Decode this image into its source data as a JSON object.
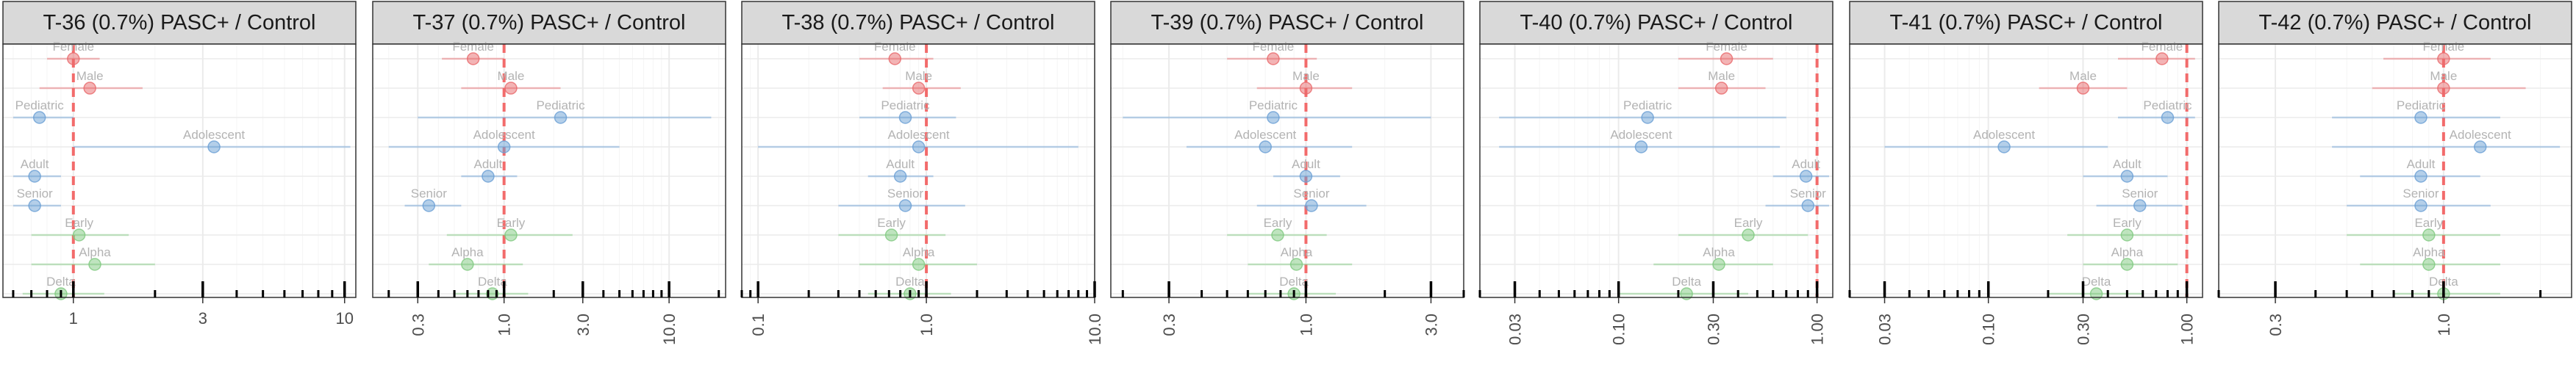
{
  "colors": {
    "sex": "#e8696b",
    "age": "#6a9fd4",
    "variant": "#7fc97f",
    "reference_line": "#f26b6b",
    "strip_fill": "#d9d9d9",
    "grid_major": "#ebebeb",
    "grid_minor": "#f5f5f5"
  },
  "chart_data": [
    {
      "type": "scatter",
      "title": "T-36 (0.7%) PASC+ / Control",
      "scale": "log10",
      "xlim": [
        0.55,
        11
      ],
      "ticks": [
        1,
        3,
        10
      ],
      "tick_labels": [
        "1",
        "3",
        "10"
      ],
      "reference_line": 1,
      "points": [
        {
          "label": "Female",
          "group": "sex",
          "x": 1.0,
          "lo": 0.8,
          "hi": 1.25
        },
        {
          "label": "Male",
          "group": "sex",
          "x": 1.15,
          "lo": 0.75,
          "hi": 1.8
        },
        {
          "label": "Pediatric",
          "group": "age",
          "x": 0.75,
          "lo": 0.6,
          "hi": 1.0
        },
        {
          "label": "Adolescent",
          "group": "age",
          "x": 3.3,
          "lo": 1.0,
          "hi": 10.5
        },
        {
          "label": "Adult",
          "group": "age",
          "x": 0.72,
          "lo": 0.6,
          "hi": 0.9
        },
        {
          "label": "Senior",
          "group": "age",
          "x": 0.72,
          "lo": 0.6,
          "hi": 0.9
        },
        {
          "label": "Early",
          "group": "variant",
          "x": 1.05,
          "lo": 0.7,
          "hi": 1.6
        },
        {
          "label": "Alpha",
          "group": "variant",
          "x": 1.2,
          "lo": 0.7,
          "hi": 2.0
        },
        {
          "label": "Delta",
          "group": "variant",
          "x": 0.9,
          "lo": 0.65,
          "hi": 1.3
        }
      ]
    },
    {
      "type": "scatter",
      "title": "T-37 (0.7%) PASC+ / Control",
      "scale": "log10",
      "xlim": [
        0.16,
        22
      ],
      "ticks": [
        0.3,
        1,
        3,
        10
      ],
      "tick_labels": [
        "0.3",
        "1.0",
        "3.0",
        "10.0"
      ],
      "reference_line": 1,
      "points": [
        {
          "label": "Female",
          "group": "sex",
          "x": 0.65,
          "lo": 0.42,
          "hi": 1.0
        },
        {
          "label": "Male",
          "group": "sex",
          "x": 1.1,
          "lo": 0.55,
          "hi": 2.2
        },
        {
          "label": "Pediatric",
          "group": "age",
          "x": 2.2,
          "lo": 0.3,
          "hi": 18
        },
        {
          "label": "Adolescent",
          "group": "age",
          "x": 1.0,
          "lo": 0.2,
          "hi": 5.0
        },
        {
          "label": "Adult",
          "group": "age",
          "x": 0.8,
          "lo": 0.55,
          "hi": 1.2
        },
        {
          "label": "Senior",
          "group": "age",
          "x": 0.35,
          "lo": 0.25,
          "hi": 0.55
        },
        {
          "label": "Early",
          "group": "variant",
          "x": 1.1,
          "lo": 0.45,
          "hi": 2.6
        },
        {
          "label": "Alpha",
          "group": "variant",
          "x": 0.6,
          "lo": 0.35,
          "hi": 1.3
        },
        {
          "label": "Delta",
          "group": "variant",
          "x": 0.85,
          "lo": 0.5,
          "hi": 1.4
        }
      ]
    },
    {
      "type": "scatter",
      "title": "T-38 (0.7%) PASC+ / Control",
      "scale": "log10",
      "xlim": [
        0.08,
        10
      ],
      "ticks": [
        0.1,
        1,
        10
      ],
      "tick_labels": [
        "0.1",
        "1.0",
        "10.0"
      ],
      "reference_line": 1,
      "points": [
        {
          "label": "Female",
          "group": "sex",
          "x": 0.65,
          "lo": 0.4,
          "hi": 1.1
        },
        {
          "label": "Male",
          "group": "sex",
          "x": 0.9,
          "lo": 0.55,
          "hi": 1.6
        },
        {
          "label": "Pediatric",
          "group": "age",
          "x": 0.75,
          "lo": 0.4,
          "hi": 1.5
        },
        {
          "label": "Adolescent",
          "group": "age",
          "x": 0.9,
          "lo": 0.1,
          "hi": 8.0
        },
        {
          "label": "Adult",
          "group": "age",
          "x": 0.7,
          "lo": 0.45,
          "hi": 1.1
        },
        {
          "label": "Senior",
          "group": "age",
          "x": 0.75,
          "lo": 0.3,
          "hi": 1.7
        },
        {
          "label": "Early",
          "group": "variant",
          "x": 0.62,
          "lo": 0.3,
          "hi": 1.3
        },
        {
          "label": "Alpha",
          "group": "variant",
          "x": 0.9,
          "lo": 0.4,
          "hi": 2.0
        },
        {
          "label": "Delta",
          "group": "variant",
          "x": 0.8,
          "lo": 0.45,
          "hi": 1.4
        }
      ]
    },
    {
      "type": "scatter",
      "title": "T-39 (0.7%) PASC+ / Control",
      "scale": "log10",
      "xlim": [
        0.18,
        4.0
      ],
      "ticks": [
        0.3,
        1,
        3
      ],
      "tick_labels": [
        "0.3",
        "1.0",
        "3.0"
      ],
      "reference_line": 1,
      "points": [
        {
          "label": "Female",
          "group": "sex",
          "x": 0.75,
          "lo": 0.5,
          "hi": 1.1
        },
        {
          "label": "Male",
          "group": "sex",
          "x": 1.0,
          "lo": 0.65,
          "hi": 1.5
        },
        {
          "label": "Pediatric",
          "group": "age",
          "x": 0.75,
          "lo": 0.2,
          "hi": 3.0
        },
        {
          "label": "Adolescent",
          "group": "age",
          "x": 0.7,
          "lo": 0.35,
          "hi": 1.5
        },
        {
          "label": "Adult",
          "group": "age",
          "x": 1.0,
          "lo": 0.75,
          "hi": 1.35
        },
        {
          "label": "Senior",
          "group": "age",
          "x": 1.05,
          "lo": 0.65,
          "hi": 1.7
        },
        {
          "label": "Early",
          "group": "variant",
          "x": 0.78,
          "lo": 0.5,
          "hi": 1.2
        },
        {
          "label": "Alpha",
          "group": "variant",
          "x": 0.92,
          "lo": 0.6,
          "hi": 1.5
        },
        {
          "label": "Delta",
          "group": "variant",
          "x": 0.9,
          "lo": 0.6,
          "hi": 1.3
        }
      ]
    },
    {
      "type": "scatter",
      "title": "T-40 (0.7%) PASC+ / Control",
      "scale": "log10",
      "xlim": [
        0.02,
        1.2
      ],
      "ticks": [
        0.03,
        0.1,
        0.3,
        1
      ],
      "tick_labels": [
        "0.03",
        "0.10",
        "0.30",
        "1.00"
      ],
      "reference_line": 1,
      "points": [
        {
          "label": "Female",
          "group": "sex",
          "x": 0.35,
          "lo": 0.2,
          "hi": 0.6
        },
        {
          "label": "Male",
          "group": "sex",
          "x": 0.33,
          "lo": 0.2,
          "hi": 0.55
        },
        {
          "label": "Pediatric",
          "group": "age",
          "x": 0.14,
          "lo": 0.025,
          "hi": 0.7
        },
        {
          "label": "Adolescent",
          "group": "age",
          "x": 0.13,
          "lo": 0.025,
          "hi": 0.65
        },
        {
          "label": "Adult",
          "group": "age",
          "x": 0.88,
          "lo": 0.6,
          "hi": 1.15
        },
        {
          "label": "Senior",
          "group": "age",
          "x": 0.9,
          "lo": 0.55,
          "hi": 1.15
        },
        {
          "label": "Early",
          "group": "variant",
          "x": 0.45,
          "lo": 0.2,
          "hi": 0.9
        },
        {
          "label": "Alpha",
          "group": "variant",
          "x": 0.32,
          "lo": 0.15,
          "hi": 0.6
        },
        {
          "label": "Delta",
          "group": "variant",
          "x": 0.22,
          "lo": 0.1,
          "hi": 0.45
        }
      ]
    },
    {
      "type": "scatter",
      "title": "T-41 (0.7%) PASC+ / Control",
      "scale": "log10",
      "xlim": [
        0.02,
        1.2
      ],
      "ticks": [
        0.03,
        0.1,
        0.3,
        1
      ],
      "tick_labels": [
        "0.03",
        "0.10",
        "0.30",
        "1.00"
      ],
      "reference_line": 1,
      "points": [
        {
          "label": "Female",
          "group": "sex",
          "x": 0.75,
          "lo": 0.45,
          "hi": 1.1
        },
        {
          "label": "Male",
          "group": "sex",
          "x": 0.3,
          "lo": 0.18,
          "hi": 0.5
        },
        {
          "label": "Pediatric",
          "group": "age",
          "x": 0.8,
          "lo": 0.45,
          "hi": 1.1
        },
        {
          "label": "Adolescent",
          "group": "age",
          "x": 0.12,
          "lo": 0.03,
          "hi": 0.4
        },
        {
          "label": "Adult",
          "group": "age",
          "x": 0.5,
          "lo": 0.3,
          "hi": 0.8
        },
        {
          "label": "Senior",
          "group": "age",
          "x": 0.58,
          "lo": 0.35,
          "hi": 0.95
        },
        {
          "label": "Early",
          "group": "variant",
          "x": 0.5,
          "lo": 0.25,
          "hi": 0.95
        },
        {
          "label": "Alpha",
          "group": "variant",
          "x": 0.5,
          "lo": 0.3,
          "hi": 0.9
        },
        {
          "label": "Delta",
          "group": "variant",
          "x": 0.35,
          "lo": 0.2,
          "hi": 0.6
        }
      ]
    },
    {
      "type": "scatter",
      "title": "T-42 (0.7%) PASC+ / Control",
      "scale": "log10",
      "xlim": [
        0.2,
        2.5
      ],
      "ticks": [
        0.3,
        1
      ],
      "tick_labels": [
        "0.3",
        "1.0"
      ],
      "reference_line": 1,
      "points": [
        {
          "label": "Female",
          "group": "sex",
          "x": 1.0,
          "lo": 0.65,
          "hi": 1.4
        },
        {
          "label": "Male",
          "group": "sex",
          "x": 1.0,
          "lo": 0.6,
          "hi": 1.8
        },
        {
          "label": "Pediatric",
          "group": "age",
          "x": 0.85,
          "lo": 0.45,
          "hi": 1.5
        },
        {
          "label": "Adolescent",
          "group": "age",
          "x": 1.3,
          "lo": 0.45,
          "hi": 2.3
        },
        {
          "label": "Adult",
          "group": "age",
          "x": 0.85,
          "lo": 0.55,
          "hi": 1.3
        },
        {
          "label": "Senior",
          "group": "age",
          "x": 0.85,
          "lo": 0.5,
          "hi": 1.4
        },
        {
          "label": "Early",
          "group": "variant",
          "x": 0.9,
          "lo": 0.5,
          "hi": 1.5
        },
        {
          "label": "Alpha",
          "group": "variant",
          "x": 0.9,
          "lo": 0.55,
          "hi": 1.5
        },
        {
          "label": "Delta",
          "group": "variant",
          "x": 1.0,
          "lo": 0.7,
          "hi": 1.5
        }
      ]
    }
  ]
}
